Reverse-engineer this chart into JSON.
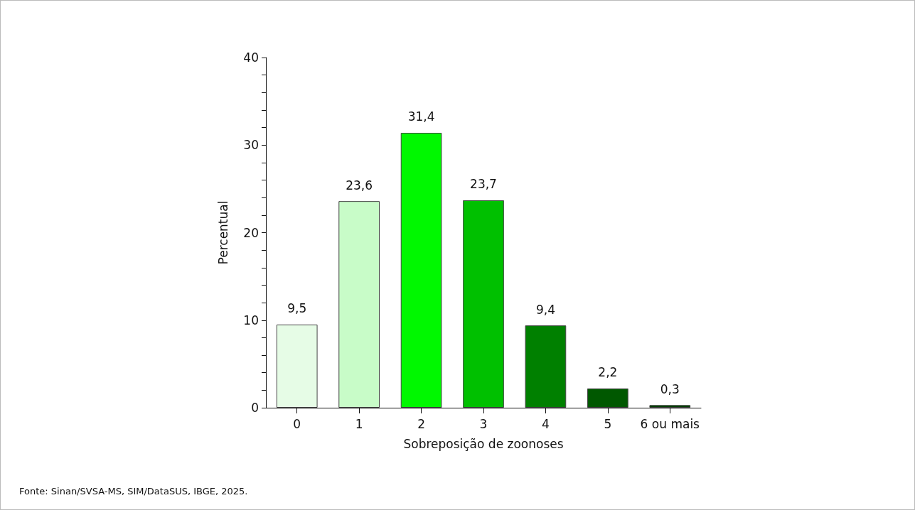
{
  "chart_data": {
    "type": "bar",
    "xlabel": "Sobreposição de zoonoses",
    "ylabel": "Percentual",
    "categories": [
      "0",
      "1",
      "2",
      "3",
      "4",
      "5",
      "6 ou mais"
    ],
    "values": [
      9.5,
      23.6,
      31.4,
      23.7,
      9.4,
      2.2,
      0.3
    ],
    "colors": [
      "#e6fce6",
      "#c8fcc8",
      "#00f800",
      "#00c000",
      "#008000",
      "#005800",
      "#004000"
    ],
    "value_labels": [
      "9,5",
      "23,6",
      "31,4",
      "23,7",
      "9,4",
      "2,2",
      "0,3"
    ],
    "ylim": [
      0,
      40
    ],
    "yticks": [
      0,
      {
        "value": 2,
        "label": null
      },
      {
        "value": 4,
        "label": null
      },
      {
        "value": 6,
        "label": null
      },
      {
        "value": 8,
        "label": null
      },
      10,
      {
        "value": 12,
        "label": null
      },
      {
        "value": 14,
        "label": null
      },
      {
        "value": 16,
        "label": null
      },
      {
        "value": 18,
        "label": null
      },
      20,
      {
        "value": 22,
        "label": null
      },
      {
        "value": 24,
        "label": null
      },
      {
        "value": 26,
        "label": null
      },
      {
        "value": 28,
        "label": null
      },
      30,
      {
        "value": 32,
        "label": null
      },
      {
        "value": 34,
        "label": null
      },
      {
        "value": 36,
        "label": null
      },
      {
        "value": 38,
        "label": null
      },
      40
    ],
    "grid": false,
    "annotations": [
      "Fonte: Sinan/SVSA-MS, SIM/DataSUS, IBGE, 2025."
    ]
  }
}
